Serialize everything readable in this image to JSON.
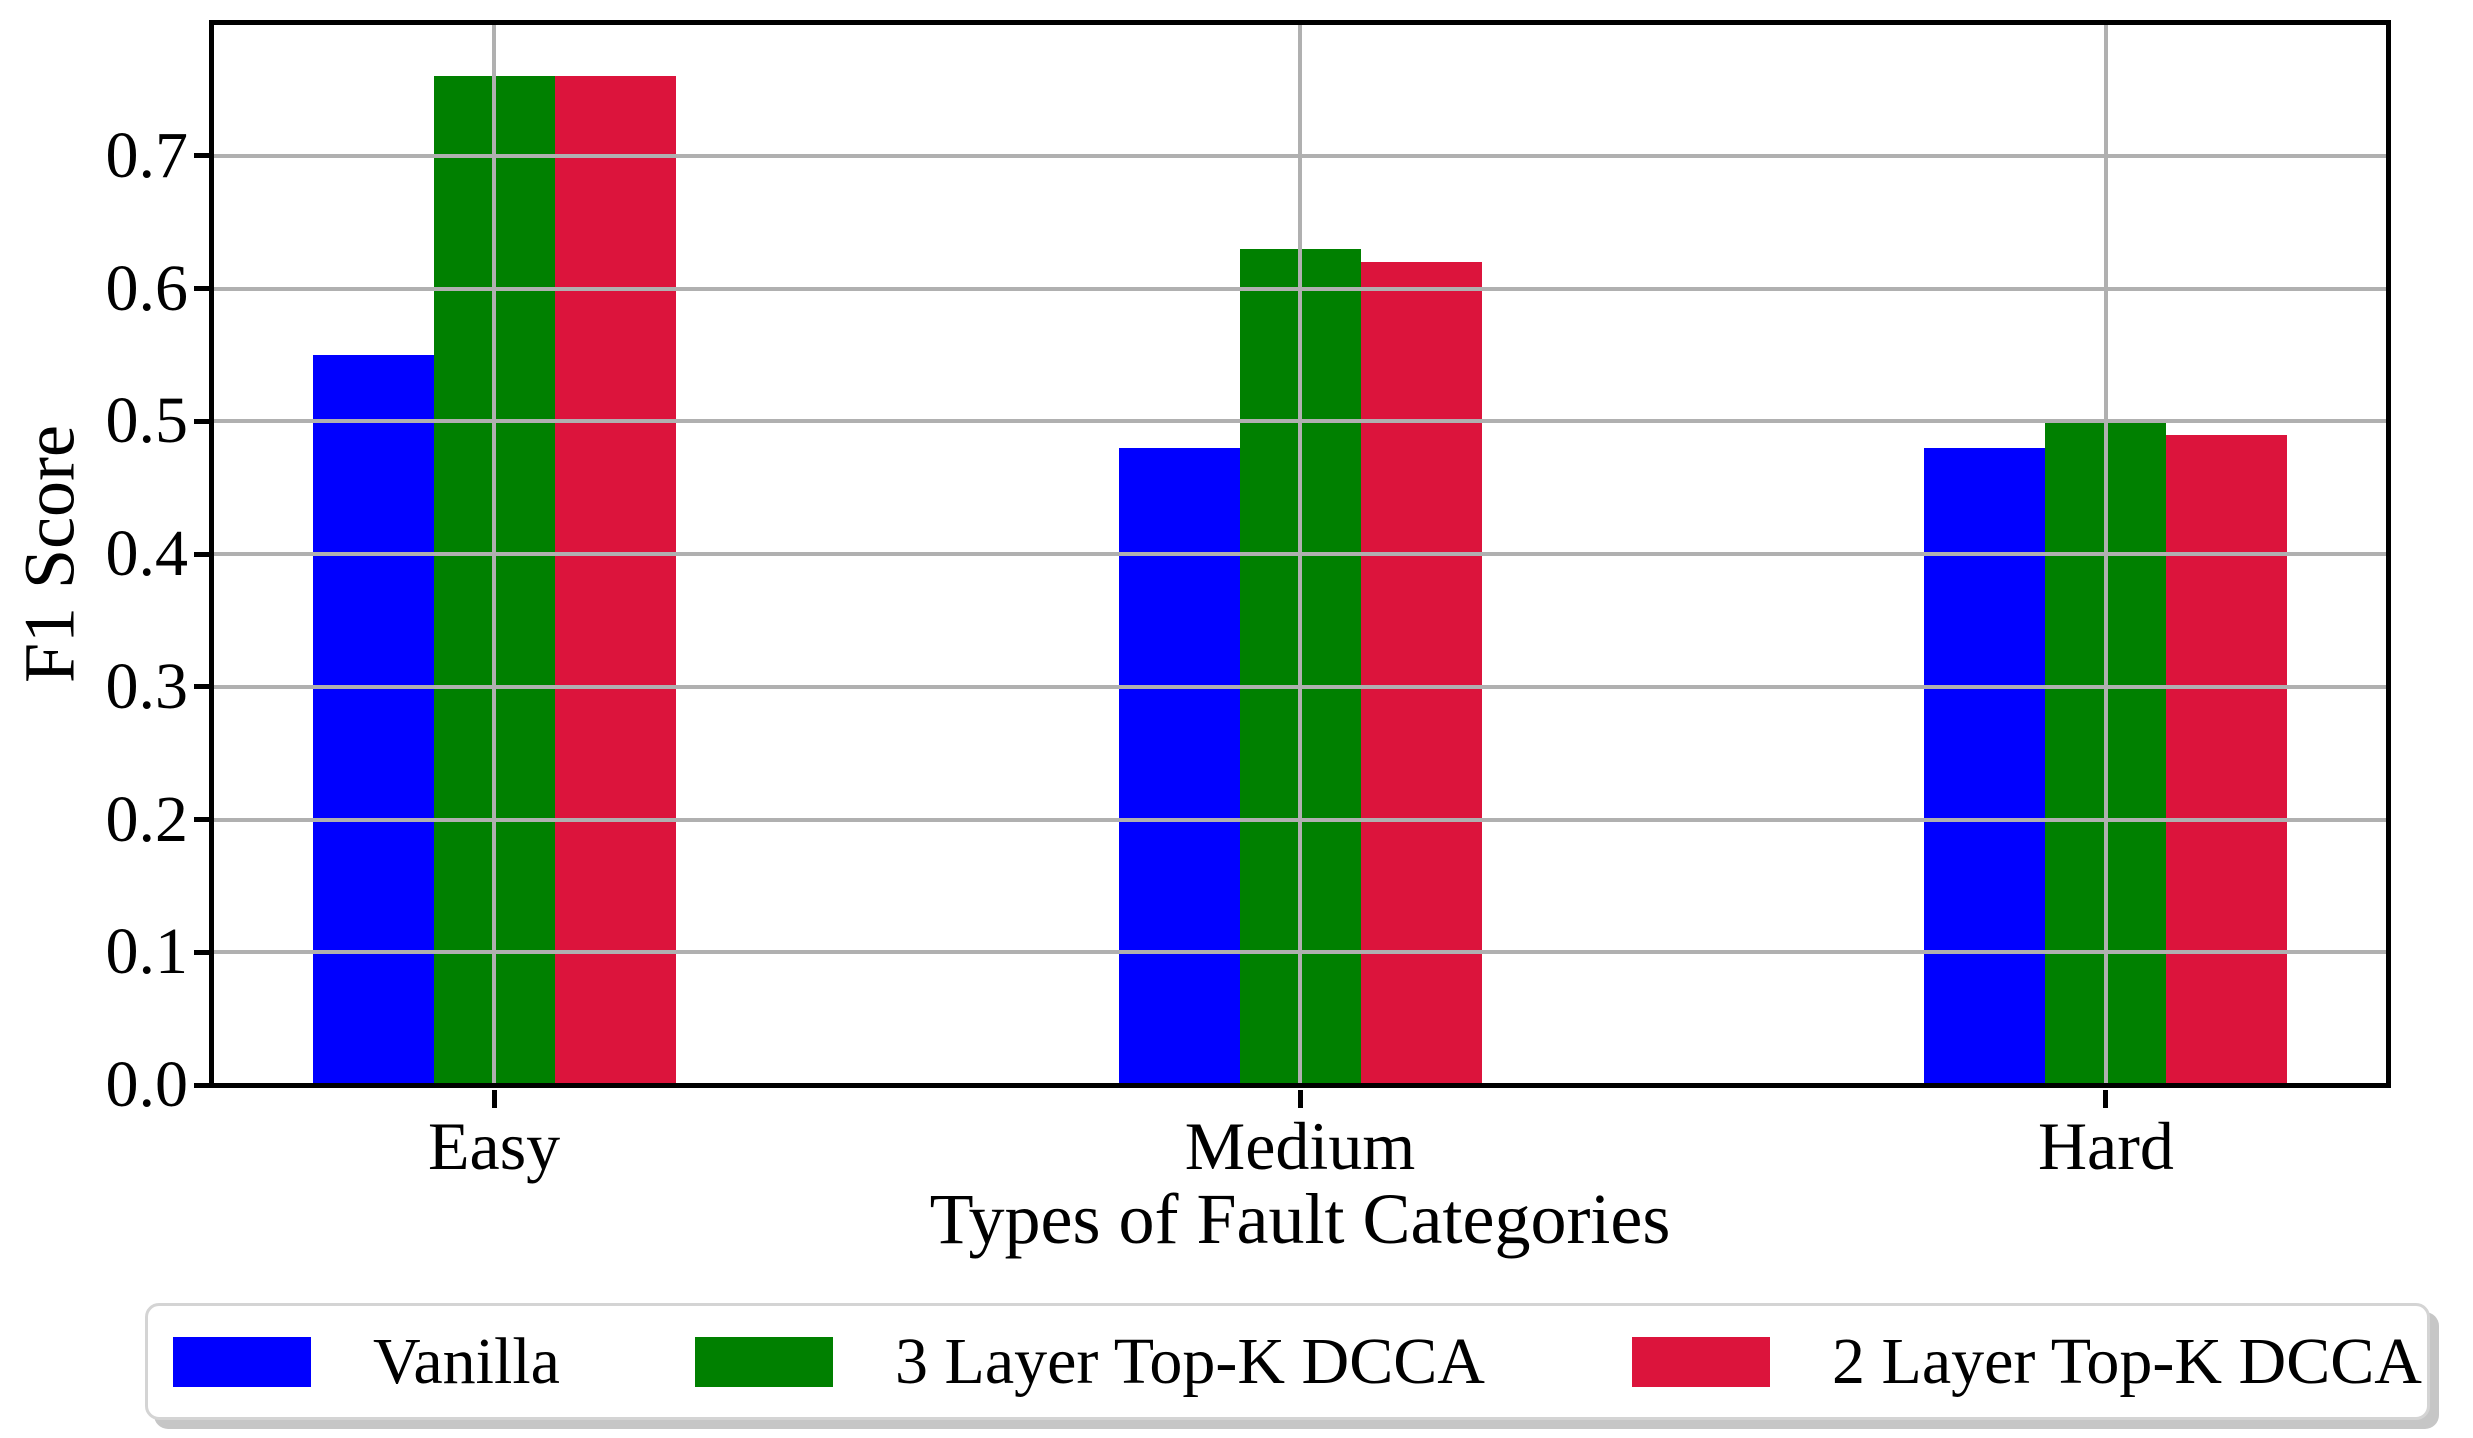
{
  "chart_data": {
    "type": "bar",
    "title": "",
    "xlabel": "Types of Fault Categories",
    "ylabel": "F1 Score",
    "categories": [
      "Easy",
      "Medium",
      "Hard"
    ],
    "series": [
      {
        "name": "Vanilla",
        "color": "#0000ff",
        "values": [
          0.55,
          0.48,
          0.48
        ]
      },
      {
        "name": "3 Layer Top-K DCCA",
        "color": "#008000",
        "values": [
          0.76,
          0.63,
          0.5
        ]
      },
      {
        "name": "2 Layer Top-K DCCA",
        "color": "#dc143c",
        "values": [
          0.76,
          0.62,
          0.49
        ]
      }
    ],
    "yticks": [
      0.0,
      0.1,
      0.2,
      0.3,
      0.4,
      0.5,
      0.6,
      0.7
    ],
    "ylim": [
      0.0,
      0.8
    ],
    "grid": true,
    "grid_color": "#b0b0b0",
    "grid_above_bars": true,
    "legend_position": "bottom"
  }
}
